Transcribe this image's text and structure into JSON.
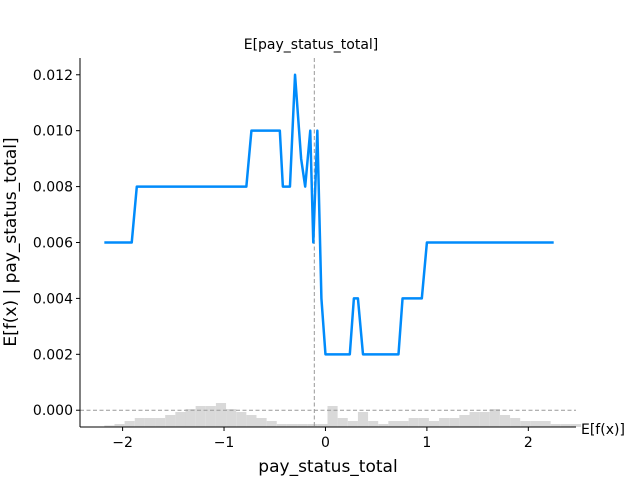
{
  "chart_data": {
    "type": "line",
    "title": "E[pay_status_total]",
    "xlabel": "pay_status_total",
    "ylabel": "E[f(x) | pay_status_total]",
    "hline_label": "E[f(x)]",
    "xlim": [
      -2.42,
      2.47
    ],
    "ylim": [
      -0.0006,
      0.0126
    ],
    "x_ticks": [
      "−2",
      "−1",
      "0",
      "1",
      "2"
    ],
    "x_tick_values": [
      -2,
      -1,
      0,
      1,
      2
    ],
    "y_ticks": [
      "0.000",
      "0.002",
      "0.004",
      "0.006",
      "0.008",
      "0.010",
      "0.012"
    ],
    "y_tick_values": [
      0,
      0.002,
      0.004,
      0.006,
      0.008,
      0.01,
      0.012
    ],
    "expected_x": -0.11,
    "expected_y": 0.0,
    "line_color": "#008bfb",
    "series": [
      {
        "x": [
          -2.18,
          -1.91,
          -1.86,
          -0.78,
          -0.73,
          -0.45,
          -0.42,
          -0.35,
          -0.3,
          -0.24,
          -0.2,
          -0.15,
          -0.12,
          -0.08,
          -0.04,
          0.0,
          0.24,
          0.28,
          0.32,
          0.37,
          0.72,
          0.76,
          0.95,
          1.0,
          2.25
        ],
        "y": [
          0.006,
          0.006,
          0.008,
          0.008,
          0.01,
          0.01,
          0.008,
          0.008,
          0.012,
          0.009,
          0.008,
          0.01,
          0.006,
          0.01,
          0.004,
          0.002,
          0.002,
          0.004,
          0.004,
          0.002,
          0.002,
          0.004,
          0.004,
          0.006,
          0.006
        ]
      }
    ],
    "histogram": {
      "x_start": -2.18,
      "bin_width": 0.1,
      "counts": [
        0.5,
        1,
        2,
        3,
        3,
        3,
        4,
        5,
        6,
        7,
        7,
        8,
        6,
        5,
        4,
        3,
        2,
        1,
        1,
        1,
        1,
        1,
        7,
        3,
        2,
        5,
        2,
        1,
        2,
        2,
        3,
        3,
        2,
        3,
        3,
        4,
        5,
        5,
        6,
        4,
        3,
        2,
        2,
        2,
        1,
        1,
        1
      ]
    }
  }
}
